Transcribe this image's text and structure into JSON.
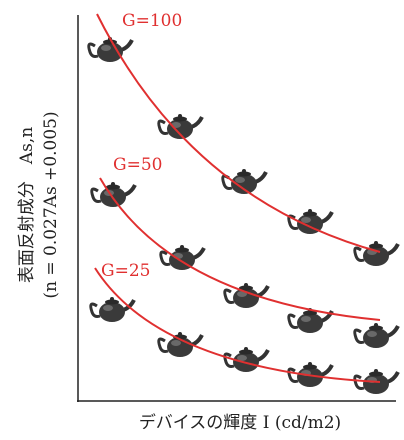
{
  "curves": [
    {
      "label": "G=100"
    },
    {
      "label": "G=50"
    },
    {
      "label": "G=25"
    }
  ],
  "axes": {
    "y_label": "表面反射成分　As,n",
    "y_sublabel": "(n = 0.027As +0.005)",
    "x_label": "デバイスの輝度 I (cd/m2)"
  }
}
